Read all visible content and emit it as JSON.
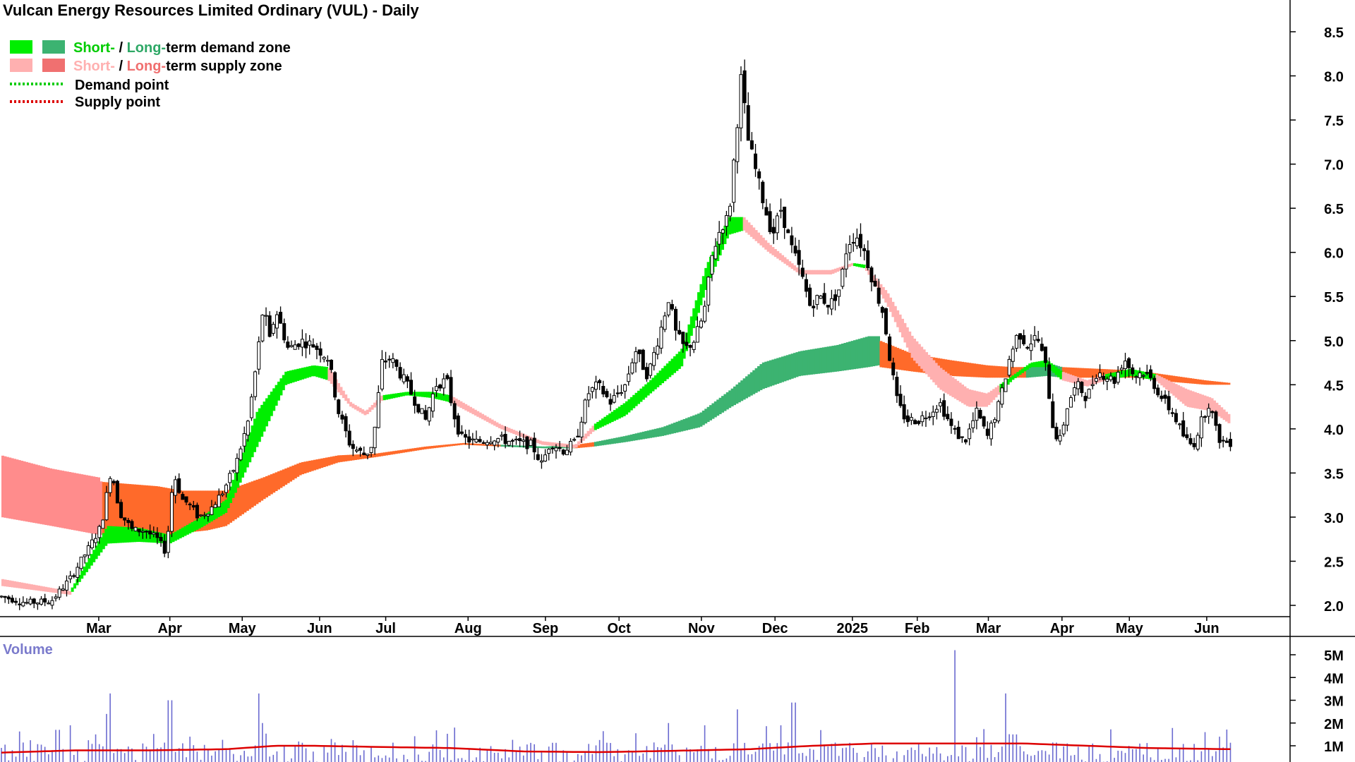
{
  "chart_data": {
    "type": "candlestick",
    "title": "Vulcan Energy Resources Limited Ordinary (VUL) - Daily",
    "legend": {
      "placement": "top-left",
      "demand_zone": {
        "short": "Short-",
        "sep": " / ",
        "long": "Long-",
        "suffix": "term demand zone"
      },
      "supply_zone": {
        "short": "Short-",
        "sep": " / ",
        "long": "Long-",
        "suffix": "term supply zone"
      },
      "demand_point": "Demand point",
      "supply_point": "Supply point"
    },
    "colors": {
      "short_demand": "#00ee00",
      "long_demand": "#3cb371",
      "short_supply": "#ffb0b0",
      "long_supply": "#ff6a2a",
      "early_supply": "#ff8c8c",
      "demand_point": "#00cc00",
      "supply_point": "#dd0000",
      "volume_bar": "#6a6ad0",
      "volume_avg": "#dd0000",
      "volume_label": "#7a7acc"
    },
    "price_axis": {
      "min": 1.8,
      "max": 8.7,
      "ticks": [
        "2.0",
        "2.5",
        "3.0",
        "3.5",
        "4.0",
        "4.5",
        "5.0",
        "5.5",
        "6.0",
        "6.5",
        "7.0",
        "7.5",
        "8.0",
        "8.5"
      ]
    },
    "months": [
      {
        "label": "Mar",
        "t": 0.078
      },
      {
        "label": "Apr",
        "t": 0.135
      },
      {
        "label": "May",
        "t": 0.193
      },
      {
        "label": "Jun",
        "t": 0.255
      },
      {
        "label": "Jul",
        "t": 0.308
      },
      {
        "label": "Aug",
        "t": 0.374
      },
      {
        "label": "Sep",
        "t": 0.436
      },
      {
        "label": "Oct",
        "t": 0.495
      },
      {
        "label": "Nov",
        "t": 0.561
      },
      {
        "label": "Dec",
        "t": 0.62
      },
      {
        "label": "2025",
        "t": 0.682
      },
      {
        "label": "Feb",
        "t": 0.734
      },
      {
        "label": "Mar",
        "t": 0.791
      },
      {
        "label": "Apr",
        "t": 0.85
      },
      {
        "label": "May",
        "t": 0.904
      },
      {
        "label": "Jun",
        "t": 0.966
      }
    ],
    "price_path": [
      [
        0.0,
        2.1
      ],
      [
        0.02,
        2.03
      ],
      [
        0.04,
        2.05
      ],
      [
        0.055,
        2.3
      ],
      [
        0.07,
        2.65
      ],
      [
        0.08,
        2.9
      ],
      [
        0.088,
        3.55
      ],
      [
        0.095,
        3.05
      ],
      [
        0.105,
        2.85
      ],
      [
        0.115,
        2.85
      ],
      [
        0.125,
        2.75
      ],
      [
        0.132,
        2.6
      ],
      [
        0.138,
        3.5
      ],
      [
        0.145,
        3.2
      ],
      [
        0.15,
        3.15
      ],
      [
        0.158,
        3.0
      ],
      [
        0.168,
        3.1
      ],
      [
        0.178,
        3.3
      ],
      [
        0.188,
        3.6
      ],
      [
        0.198,
        4.1
      ],
      [
        0.205,
        4.8
      ],
      [
        0.21,
        5.4
      ],
      [
        0.215,
        5.0
      ],
      [
        0.22,
        5.35
      ],
      [
        0.23,
        4.9
      ],
      [
        0.24,
        5.0
      ],
      [
        0.25,
        4.95
      ],
      [
        0.262,
        4.8
      ],
      [
        0.27,
        4.2
      ],
      [
        0.28,
        3.8
      ],
      [
        0.292,
        3.7
      ],
      [
        0.298,
        3.85
      ],
      [
        0.305,
        4.75
      ],
      [
        0.312,
        4.8
      ],
      [
        0.325,
        4.5
      ],
      [
        0.332,
        4.3
      ],
      [
        0.34,
        4.1
      ],
      [
        0.348,
        4.5
      ],
      [
        0.357,
        4.55
      ],
      [
        0.362,
        4.2
      ],
      [
        0.368,
        3.9
      ],
      [
        0.38,
        3.85
      ],
      [
        0.395,
        3.9
      ],
      [
        0.41,
        3.85
      ],
      [
        0.425,
        3.82
      ],
      [
        0.433,
        3.6
      ],
      [
        0.44,
        3.85
      ],
      [
        0.45,
        3.75
      ],
      [
        0.46,
        3.85
      ],
      [
        0.47,
        4.4
      ],
      [
        0.478,
        4.5
      ],
      [
        0.488,
        4.3
      ],
      [
        0.5,
        4.5
      ],
      [
        0.508,
        4.9
      ],
      [
        0.518,
        4.6
      ],
      [
        0.528,
        5.1
      ],
      [
        0.535,
        5.5
      ],
      [
        0.54,
        5.1
      ],
      [
        0.548,
        4.9
      ],
      [
        0.555,
        5.0
      ],
      [
        0.563,
        5.3
      ],
      [
        0.57,
        6.0
      ],
      [
        0.577,
        6.3
      ],
      [
        0.583,
        6.4
      ],
      [
        0.588,
        7.2
      ],
      [
        0.593,
        8.0
      ],
      [
        0.598,
        7.3
      ],
      [
        0.605,
        6.9
      ],
      [
        0.612,
        6.5
      ],
      [
        0.618,
        6.2
      ],
      [
        0.625,
        6.5
      ],
      [
        0.632,
        6.1
      ],
      [
        0.64,
        5.8
      ],
      [
        0.648,
        5.4
      ],
      [
        0.656,
        5.5
      ],
      [
        0.664,
        5.4
      ],
      [
        0.672,
        5.6
      ],
      [
        0.678,
        6.1
      ],
      [
        0.685,
        6.2
      ],
      [
        0.692,
        6.0
      ],
      [
        0.7,
        5.6
      ],
      [
        0.707,
        5.3
      ],
      [
        0.712,
        4.8
      ],
      [
        0.718,
        4.3
      ],
      [
        0.725,
        4.1
      ],
      [
        0.735,
        4.1
      ],
      [
        0.745,
        4.2
      ],
      [
        0.752,
        4.3
      ],
      [
        0.762,
        4.0
      ],
      [
        0.772,
        3.85
      ],
      [
        0.782,
        4.2
      ],
      [
        0.79,
        3.9
      ],
      [
        0.8,
        4.3
      ],
      [
        0.808,
        4.8
      ],
      [
        0.815,
        5.1
      ],
      [
        0.822,
        4.95
      ],
      [
        0.83,
        5.05
      ],
      [
        0.837,
        4.7
      ],
      [
        0.843,
        4.0
      ],
      [
        0.848,
        3.85
      ],
      [
        0.855,
        4.3
      ],
      [
        0.862,
        4.5
      ],
      [
        0.87,
        4.35
      ],
      [
        0.878,
        4.65
      ],
      [
        0.885,
        4.6
      ],
      [
        0.892,
        4.55
      ],
      [
        0.9,
        4.8
      ],
      [
        0.908,
        4.6
      ],
      [
        0.915,
        4.65
      ],
      [
        0.922,
        4.55
      ],
      [
        0.93,
        4.35
      ],
      [
        0.94,
        4.15
      ],
      [
        0.948,
        3.9
      ],
      [
        0.955,
        3.8
      ],
      [
        0.962,
        4.1
      ],
      [
        0.968,
        4.3
      ],
      [
        0.975,
        3.9
      ],
      [
        0.98,
        3.85
      ],
      [
        0.985,
        3.85
      ]
    ],
    "short_term_zone": [
      [
        0.0,
        2.22,
        2.3,
        "supply"
      ],
      [
        0.055,
        2.12,
        2.16,
        "demand"
      ],
      [
        0.085,
        2.7,
        2.9,
        "demand"
      ],
      [
        0.11,
        2.72,
        2.88,
        "demand"
      ],
      [
        0.135,
        2.7,
        2.8,
        "demand"
      ],
      [
        0.16,
        2.88,
        3.0,
        "demand"
      ],
      [
        0.18,
        3.05,
        3.2,
        "demand"
      ],
      [
        0.205,
        3.8,
        4.2,
        "demand"
      ],
      [
        0.228,
        4.5,
        4.65,
        "demand"
      ],
      [
        0.25,
        4.6,
        4.72,
        "demand"
      ],
      [
        0.262,
        4.55,
        4.7,
        "supply"
      ],
      [
        0.28,
        4.25,
        4.3,
        "supply"
      ],
      [
        0.292,
        4.15,
        4.2,
        "supply"
      ],
      [
        0.305,
        4.32,
        4.38,
        "demand"
      ],
      [
        0.325,
        4.38,
        4.42,
        "demand"
      ],
      [
        0.345,
        4.35,
        4.42,
        "demand"
      ],
      [
        0.36,
        4.3,
        4.38,
        "supply"
      ],
      [
        0.4,
        4.0,
        4.05,
        "supply"
      ],
      [
        0.433,
        3.82,
        3.86,
        "supply"
      ],
      [
        0.46,
        3.78,
        3.82,
        "supply"
      ],
      [
        0.475,
        3.98,
        4.05,
        "demand"
      ],
      [
        0.5,
        4.15,
        4.3,
        "demand"
      ],
      [
        0.52,
        4.4,
        4.55,
        "demand"
      ],
      [
        0.545,
        4.7,
        4.9,
        "demand"
      ],
      [
        0.565,
        5.6,
        5.85,
        "demand"
      ],
      [
        0.583,
        6.2,
        6.4,
        "demand"
      ],
      [
        0.595,
        6.25,
        6.4,
        "supply"
      ],
      [
        0.615,
        6.0,
        6.1,
        "supply"
      ],
      [
        0.64,
        5.75,
        5.8,
        "supply"
      ],
      [
        0.665,
        5.75,
        5.8,
        "supply"
      ],
      [
        0.682,
        5.85,
        5.88,
        "demand"
      ],
      [
        0.692,
        5.82,
        5.86,
        "supply"
      ],
      [
        0.71,
        5.4,
        5.55,
        "supply"
      ],
      [
        0.73,
        4.8,
        5.05,
        "supply"
      ],
      [
        0.752,
        4.45,
        4.7,
        "supply"
      ],
      [
        0.775,
        4.25,
        4.45,
        "supply"
      ],
      [
        0.79,
        4.25,
        4.4,
        "supply"
      ],
      [
        0.8,
        4.4,
        4.5,
        "demand"
      ],
      [
        0.81,
        4.55,
        4.6,
        "demand"
      ],
      [
        0.825,
        4.7,
        4.75,
        "demand"
      ],
      [
        0.838,
        4.7,
        4.78,
        "demand"
      ],
      [
        0.85,
        4.55,
        4.65,
        "supply"
      ],
      [
        0.87,
        4.48,
        4.55,
        "supply"
      ],
      [
        0.885,
        4.55,
        4.62,
        "demand"
      ],
      [
        0.905,
        4.6,
        4.68,
        "demand"
      ],
      [
        0.925,
        4.55,
        4.62,
        "supply"
      ],
      [
        0.95,
        4.25,
        4.45,
        "supply"
      ],
      [
        0.97,
        4.2,
        4.35,
        "supply"
      ],
      [
        0.985,
        4.05,
        4.15,
        "supply"
      ]
    ],
    "long_term_zone": [
      [
        0.0,
        3.0,
        3.7,
        "early"
      ],
      [
        0.04,
        2.9,
        3.55,
        "early"
      ],
      [
        0.078,
        2.8,
        3.45,
        "early"
      ],
      [
        0.08,
        2.8,
        3.4,
        "supply"
      ],
      [
        0.125,
        2.75,
        3.35,
        "supply"
      ],
      [
        0.145,
        2.82,
        3.3,
        "supply"
      ],
      [
        0.165,
        2.85,
        3.3,
        "supply"
      ],
      [
        0.18,
        2.9,
        3.3,
        "supply"
      ],
      [
        0.21,
        3.2,
        3.45,
        "supply"
      ],
      [
        0.24,
        3.48,
        3.62,
        "supply"
      ],
      [
        0.27,
        3.62,
        3.7,
        "supply"
      ],
      [
        0.3,
        3.68,
        3.72,
        "supply"
      ],
      [
        0.34,
        3.77,
        3.8,
        "supply"
      ],
      [
        0.37,
        3.82,
        3.84,
        "supply"
      ],
      [
        0.4,
        3.8,
        3.82,
        "demand"
      ],
      [
        0.435,
        3.78,
        3.8,
        "demand"
      ],
      [
        0.46,
        3.78,
        3.82,
        "supply"
      ],
      [
        0.475,
        3.8,
        3.85,
        "demand"
      ],
      [
        0.5,
        3.85,
        3.92,
        "demand"
      ],
      [
        0.53,
        3.92,
        4.02,
        "demand"
      ],
      [
        0.56,
        4.02,
        4.18,
        "demand"
      ],
      [
        0.585,
        4.25,
        4.45,
        "demand"
      ],
      [
        0.61,
        4.45,
        4.75,
        "demand"
      ],
      [
        0.64,
        4.6,
        4.88,
        "demand"
      ],
      [
        0.67,
        4.65,
        4.95,
        "demand"
      ],
      [
        0.695,
        4.7,
        5.05,
        "demand"
      ],
      [
        0.703,
        4.72,
        5.05,
        "demand"
      ],
      [
        0.704,
        4.7,
        5.0,
        "supply"
      ],
      [
        0.73,
        4.65,
        4.85,
        "supply"
      ],
      [
        0.76,
        4.6,
        4.78,
        "supply"
      ],
      [
        0.79,
        4.58,
        4.72,
        "supply"
      ],
      [
        0.81,
        4.58,
        4.7,
        "supply"
      ],
      [
        0.822,
        4.58,
        4.7,
        "demand"
      ],
      [
        0.838,
        4.6,
        4.75,
        "demand"
      ],
      [
        0.85,
        4.58,
        4.7,
        "supply"
      ],
      [
        0.88,
        4.58,
        4.68,
        "supply"
      ],
      [
        0.91,
        4.58,
        4.66,
        "supply"
      ],
      [
        0.94,
        4.53,
        4.6,
        "supply"
      ],
      [
        0.965,
        4.5,
        4.55,
        "supply"
      ],
      [
        0.985,
        4.5,
        4.52,
        "supply"
      ]
    ],
    "volume_axis": {
      "min": 0,
      "max": 5.6,
      "ticks": [
        "1M",
        "2M",
        "3M",
        "4M",
        "5M"
      ],
      "label": "Volume"
    },
    "volume_spikes": [
      [
        0.045,
        1.7
      ],
      [
        0.055,
        1.9
      ],
      [
        0.075,
        1.5
      ],
      [
        0.088,
        3.3
      ],
      [
        0.085,
        2.4
      ],
      [
        0.135,
        3.0
      ],
      [
        0.15,
        1.4
      ],
      [
        0.205,
        3.3
      ],
      [
        0.21,
        2.0
      ],
      [
        0.265,
        1.3
      ],
      [
        0.362,
        1.8
      ],
      [
        0.535,
        2.0
      ],
      [
        0.563,
        1.9
      ],
      [
        0.59,
        2.6
      ],
      [
        0.625,
        1.9
      ],
      [
        0.635,
        2.9
      ],
      [
        0.763,
        5.2
      ],
      [
        0.805,
        3.3
      ],
      [
        0.812,
        1.5
      ],
      [
        0.965,
        1.6
      ],
      [
        0.975,
        1.4
      ]
    ],
    "volume_avg": [
      [
        0.0,
        0.7
      ],
      [
        0.06,
        0.8
      ],
      [
        0.12,
        0.8
      ],
      [
        0.18,
        0.85
      ],
      [
        0.22,
        1.0
      ],
      [
        0.25,
        1.0
      ],
      [
        0.3,
        0.95
      ],
      [
        0.36,
        0.9
      ],
      [
        0.42,
        0.75
      ],
      [
        0.48,
        0.72
      ],
      [
        0.54,
        0.78
      ],
      [
        0.6,
        0.85
      ],
      [
        0.65,
        1.0
      ],
      [
        0.7,
        1.1
      ],
      [
        0.76,
        1.1
      ],
      [
        0.82,
        1.1
      ],
      [
        0.87,
        1.0
      ],
      [
        0.92,
        0.9
      ],
      [
        0.985,
        0.85
      ]
    ]
  }
}
